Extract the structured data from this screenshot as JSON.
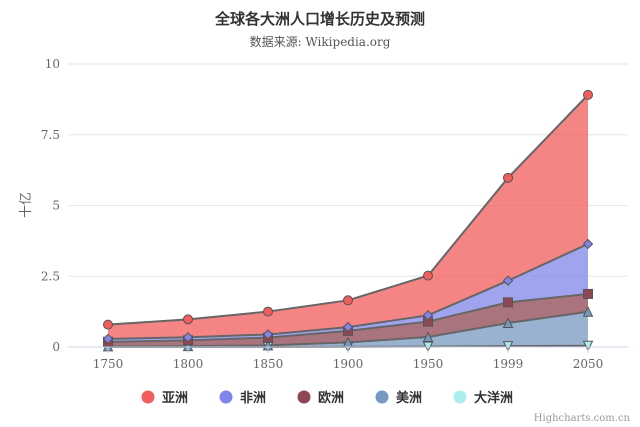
{
  "chart_data": {
    "type": "area",
    "stacked": true,
    "title": "全球各大洲人口增长历史及预测",
    "subtitle": "数据来源: Wikipedia.org",
    "ylabel": "十亿",
    "ylim": [
      0,
      10
    ],
    "yticks": [
      "0",
      "2.5",
      "5",
      "7.5",
      "10"
    ],
    "ytick_values": [
      0,
      2.5,
      5,
      7.5,
      10
    ],
    "categories": [
      "1750",
      "1800",
      "1850",
      "1900",
      "1950",
      "1999",
      "2050"
    ],
    "grid": true,
    "legend_position": "bottom",
    "series": [
      {
        "name": "亚洲",
        "color": "#f15c5c",
        "marker": "circle",
        "values": [
          0.502,
          0.635,
          0.809,
          0.947,
          1.402,
          3.634,
          5.268
        ]
      },
      {
        "name": "非洲",
        "color": "#8085e9",
        "marker": "diamond",
        "values": [
          0.106,
          0.107,
          0.111,
          0.133,
          0.221,
          0.767,
          1.766
        ]
      },
      {
        "name": "欧洲",
        "color": "#8d4654",
        "marker": "square",
        "values": [
          0.163,
          0.203,
          0.276,
          0.408,
          0.547,
          0.729,
          0.628
        ]
      },
      {
        "name": "美洲",
        "color": "#7798bf",
        "marker": "triangle",
        "values": [
          0.018,
          0.031,
          0.054,
          0.156,
          0.339,
          0.818,
          1.201
        ]
      },
      {
        "name": "大洋洲",
        "color": "#aaeeee",
        "marker": "triangle-down",
        "values": [
          0.002,
          0.002,
          0.002,
          0.006,
          0.013,
          0.03,
          0.046
        ]
      }
    ]
  },
  "credit": "Highcharts.com.cn"
}
